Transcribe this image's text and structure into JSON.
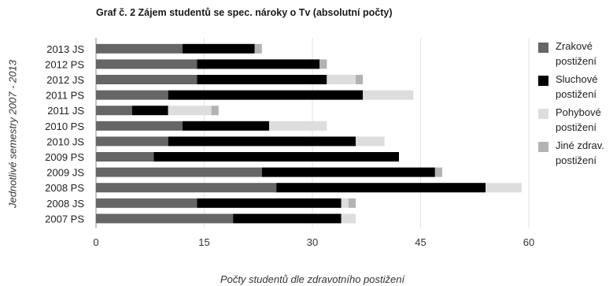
{
  "chart_data": {
    "type": "bar",
    "orientation": "horizontal",
    "stacked": true,
    "title": "Graf č. 2 Zájem studentů se spec. nároky o Tv (absolutní počty)",
    "xlabel": "Počty studentů dle zdravotního postižení",
    "ylabel": "Jednotlivé semestry 2007 - 2013",
    "xlim": [
      0,
      60
    ],
    "xticks": [
      "0",
      "15",
      "30",
      "45",
      "60"
    ],
    "grid": true,
    "legend_position": "right",
    "categories": [
      "2013 JS",
      "2012 PS",
      "2012 JS",
      "2011 PS",
      "2011 JS",
      "2010 PS",
      "2010 JS",
      "2009 PS",
      "2009 JS",
      "2008 PS",
      "2008 JS",
      "2007 PS"
    ],
    "series": [
      {
        "name": "Zrakové postižení",
        "color": "#666666",
        "values": [
          12,
          14,
          14,
          10,
          5,
          12,
          10,
          8,
          23,
          25,
          14,
          19
        ]
      },
      {
        "name": "Sluchové postižení",
        "color": "#000000",
        "values": [
          10,
          17,
          18,
          27,
          5,
          12,
          26,
          34,
          24,
          29,
          20,
          15
        ]
      },
      {
        "name": "Pohybové postižení",
        "color": "#dddddd",
        "values": [
          0,
          0,
          4,
          7,
          6,
          8,
          4,
          0,
          0,
          5,
          1,
          2
        ]
      },
      {
        "name": "Jiné zdrav. postižení",
        "color": "#b3b3b3",
        "values": [
          1,
          1,
          1,
          0,
          1,
          0,
          0,
          0,
          1,
          0,
          1,
          0
        ]
      }
    ]
  }
}
